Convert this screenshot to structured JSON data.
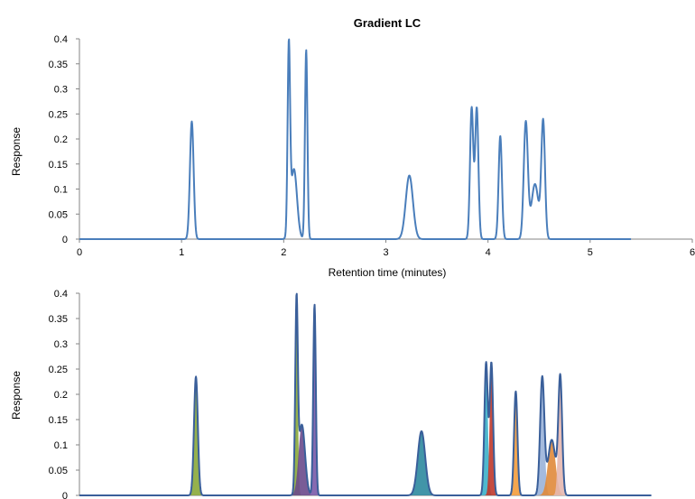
{
  "chart_data": [
    {
      "type": "line",
      "title": "Gradient LC",
      "xlabel": "Retention time (minutes)",
      "ylabel": "Response",
      "xlim": [
        0,
        6
      ],
      "ylim": [
        0,
        0.4
      ],
      "xticks": [
        "0",
        "1",
        "2",
        "3",
        "4",
        "5",
        "6"
      ],
      "yticks": [
        "0",
        "0.05",
        "0.1",
        "0.15",
        "0.2",
        "0.25",
        "0.3",
        "0.35",
        "0.4"
      ],
      "x_range": [
        0,
        5.4
      ],
      "line_color": "#4a7ebb",
      "grid": false,
      "peaks": [
        {
          "rt": 1.1,
          "height": 0.235,
          "sigma": 0.018
        },
        {
          "rt": 2.05,
          "height": 0.365,
          "sigma": 0.012
        },
        {
          "rt": 2.1,
          "height": 0.14,
          "sigma": 0.03
        },
        {
          "rt": 2.22,
          "height": 0.378,
          "sigma": 0.012
        },
        {
          "rt": 3.23,
          "height": 0.127,
          "sigma": 0.035
        },
        {
          "rt": 3.84,
          "height": 0.262,
          "sigma": 0.016
        },
        {
          "rt": 3.89,
          "height": 0.262,
          "sigma": 0.016
        },
        {
          "rt": 4.12,
          "height": 0.206,
          "sigma": 0.016
        },
        {
          "rt": 4.37,
          "height": 0.232,
          "sigma": 0.02
        },
        {
          "rt": 4.46,
          "height": 0.11,
          "sigma": 0.035
        },
        {
          "rt": 4.54,
          "height": 0.232,
          "sigma": 0.018
        }
      ]
    },
    {
      "type": "area",
      "title": "",
      "xlabel": "",
      "ylabel": "Response",
      "xlim": [
        0,
        6
      ],
      "ylim": [
        0,
        0.4
      ],
      "yticks": [
        "0",
        "0.05",
        "0.1",
        "0.15",
        "0.2",
        "0.25",
        "0.3",
        "0.35",
        "0.4"
      ],
      "x_range": [
        0,
        5.4
      ],
      "line_color": "#3a5f9a",
      "grid": false,
      "peak_colors": [
        "#8aa83a",
        "#8aa83a",
        "#6a4a8c",
        "#7a5aa8",
        "#2e8a9e",
        "#3bb0c9",
        "#c0392b",
        "#f39c3c",
        "#9ab3d9",
        "#e08a3a",
        "#e6b8b0"
      ]
    }
  ]
}
